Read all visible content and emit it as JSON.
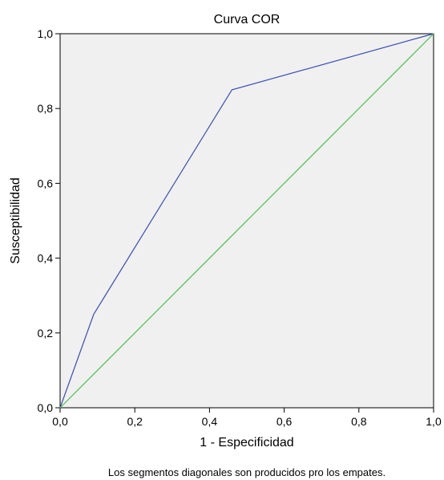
{
  "chart_data": {
    "type": "line",
    "title": "Curva COR",
    "xlabel": "1 - Especificidad",
    "ylabel": "Susceptibilidad",
    "xlim": [
      0.0,
      1.0
    ],
    "ylim": [
      0.0,
      1.0
    ],
    "x_ticks": [
      "0,0",
      "0,2",
      "0,4",
      "0,6",
      "0,8",
      "1,0"
    ],
    "y_ticks": [
      "0,0",
      "0,2",
      "0,4",
      "0,6",
      "0,8",
      "1,0"
    ],
    "grid": false,
    "legend": "none",
    "series": [
      {
        "x": [
          0.0,
          0.09,
          0.46,
          1.0
        ],
        "y": [
          0.0,
          0.25,
          0.85,
          1.0
        ],
        "color": "#3a4fb5"
      },
      {
        "x": [
          0.0,
          1.0
        ],
        "y": [
          0.0,
          1.0
        ],
        "color": "#4cc04c"
      }
    ],
    "plot_background": "#f0f0f0",
    "footnote": "Los segmentos diagonales son producidos pro los empates."
  }
}
